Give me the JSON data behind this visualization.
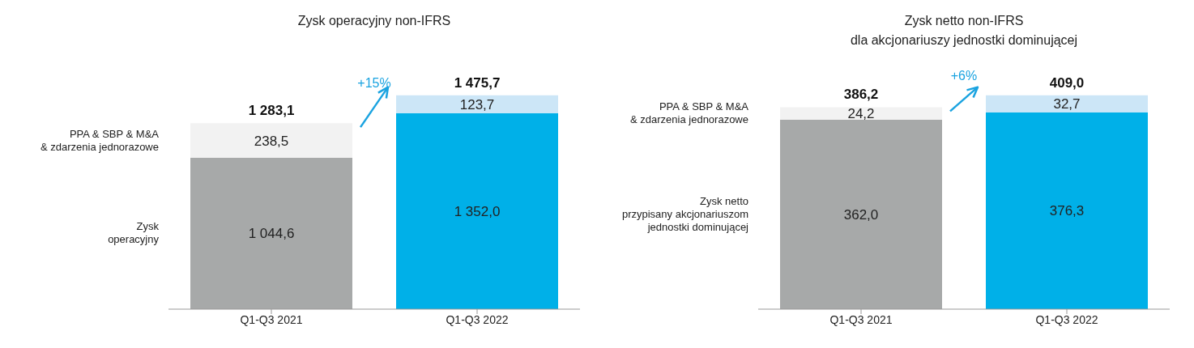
{
  "chart_data": [
    {
      "type": "bar",
      "stacked": true,
      "title": "Zysk operacyjny non-IFRS",
      "categories": [
        "Q1-Q3 2021",
        "Q1-Q3 2022"
      ],
      "series": [
        {
          "name": "Zysk\noperacyjny",
          "colors": [
            "#a7a9a9",
            "#00b0e8"
          ],
          "values": [
            1044.6,
            1352.0
          ],
          "value_labels": [
            "1 044,6",
            "1 352,0"
          ]
        },
        {
          "name": "PPA & SBP & M&A\n& zdarzenia jednorazowe",
          "colors": [
            "#f2f2f2",
            "#cce6f7"
          ],
          "values": [
            238.5,
            123.7
          ],
          "value_labels": [
            "238,5",
            "123,7"
          ]
        }
      ],
      "totals": [
        "1 283,1",
        "1 475,7"
      ],
      "annotations": [
        "+15%"
      ],
      "legend": "left"
    },
    {
      "type": "bar",
      "stacked": true,
      "title": "Zysk netto non-IFRS\ndla akcjonariuszy jednostki dominującej",
      "categories": [
        "Q1-Q3 2021",
        "Q1-Q3 2022"
      ],
      "series": [
        {
          "name": "Zysk netto\nprzypisany akcjonariuszom\njednostki dominującej",
          "colors": [
            "#a7a9a9",
            "#00b0e8"
          ],
          "values": [
            362.0,
            376.3
          ],
          "value_labels": [
            "362,0",
            "376,3"
          ]
        },
        {
          "name": "PPA & SBP & M&A\n& zdarzenia jednorazowe",
          "colors": [
            "#f2f2f2",
            "#cce6f7"
          ],
          "values": [
            24.2,
            32.7
          ],
          "value_labels": [
            "24,2",
            "32,7"
          ]
        }
      ],
      "totals": [
        "386,2",
        "409,0"
      ],
      "annotations": [
        "+6%"
      ],
      "legend": "left"
    }
  ]
}
